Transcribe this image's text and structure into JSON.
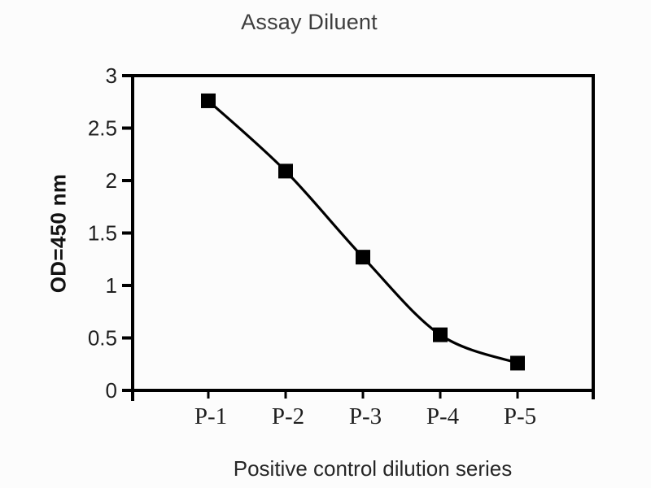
{
  "page": {
    "background": "#fcfcfc"
  },
  "chart_data": {
    "type": "line",
    "title": "Assay Diluent",
    "xlabel": "Positive control dilution series",
    "ylabel": "OD=450 nm",
    "categories": [
      "P-1",
      "P-2",
      "P-3",
      "P-4",
      "P-5"
    ],
    "series": [
      {
        "values": [
          2.76,
          2.09,
          1.27,
          0.53,
          0.26
        ]
      }
    ],
    "ylim": [
      0,
      3
    ],
    "ytick_step": 0.5,
    "ytick_labels": [
      "0",
      "0.5",
      "1",
      "1.5",
      "2",
      "2.5",
      "3"
    ],
    "grid": false,
    "legend": "none",
    "marker": "filled-square",
    "line_smooth": true,
    "colors": {
      "background": "#fcfcfc",
      "line": "#000000",
      "marker": "#000000",
      "axis": "#000000",
      "title_text": "#3d3d3d",
      "axis_title_text": "#262626",
      "y_axis_title_text": "#121212",
      "tick_text": "#1f1f1f"
    }
  }
}
